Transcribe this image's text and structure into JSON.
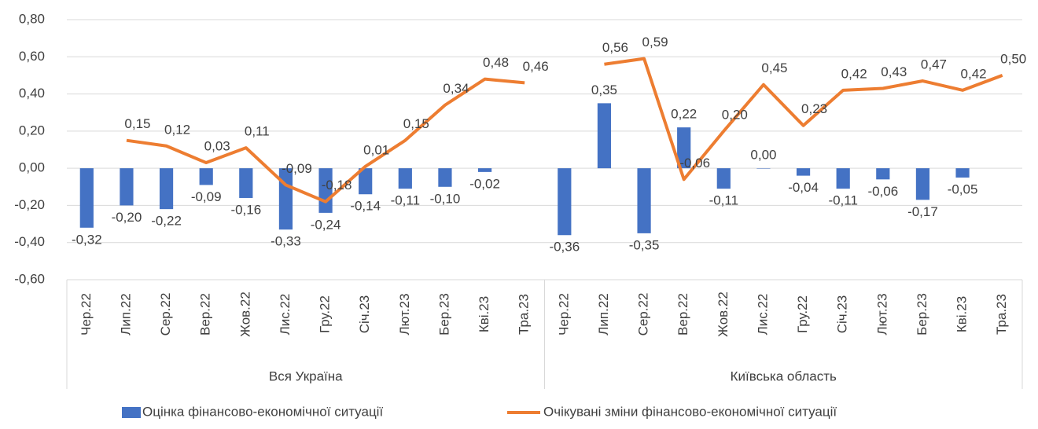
{
  "chart_data": {
    "type": "bar_line",
    "groups": [
      {
        "name": "Вся Україна",
        "categories": [
          "Чер.22",
          "Лип.22",
          "Сер.22",
          "Вер.22",
          "Жов.22",
          "Лис.22",
          "Гру.22",
          "Січ.23",
          "Лют.23",
          "Бер.23",
          "Кві.23",
          "Тра.23"
        ]
      },
      {
        "name": "Київська область",
        "categories": [
          "Чер.22",
          "Лип.22",
          "Сер.22",
          "Вер.22",
          "Жов.22",
          "Лис.22",
          "Гру.22",
          "Січ.23",
          "Лют.23",
          "Бер.23",
          "Кві.23",
          "Тра.23"
        ]
      }
    ],
    "series": [
      {
        "name": "Оцінка фінансово-економічної ситуації",
        "kind": "bar",
        "color": "#4472c4",
        "values": [
          -0.32,
          -0.2,
          -0.22,
          -0.09,
          -0.16,
          -0.33,
          -0.24,
          -0.14,
          -0.11,
          -0.1,
          -0.02,
          null,
          -0.36,
          0.35,
          -0.35,
          0.22,
          -0.11,
          0.0,
          -0.04,
          -0.11,
          -0.06,
          -0.17,
          -0.05,
          null
        ],
        "value_labels": [
          "-0,32",
          "-0,20",
          "-0,22",
          "-0,09",
          "-0,16",
          "-0,33",
          "-0,24",
          "-0,14",
          "-0,11",
          "-0,10",
          "-0,02",
          null,
          "-0,36",
          "0,35",
          "-0,35",
          "0,22",
          "-0,11",
          "0,00",
          "-0,04",
          "-0,11",
          "-0,06",
          "-0,17",
          "-0,05",
          null
        ]
      },
      {
        "name": "Очікувані зміни фінансово-економічної ситуації",
        "kind": "line",
        "color": "#ed7d31",
        "values": [
          null,
          0.15,
          0.12,
          0.03,
          0.11,
          -0.09,
          -0.18,
          0.01,
          0.15,
          0.34,
          0.48,
          0.46,
          null,
          0.56,
          0.59,
          -0.06,
          0.2,
          0.45,
          0.23,
          0.42,
          0.43,
          0.47,
          0.42,
          0.5
        ],
        "value_labels": [
          null,
          "0,15",
          "0,12",
          "0,03",
          "0,11",
          "-0,09",
          "-0,18",
          "0,01",
          "0,15",
          "0,34",
          "0,48",
          "0,46",
          null,
          "0,56",
          "0,59",
          "-0,06",
          "0,20",
          "0,45",
          "0,23",
          "0,42",
          "0,43",
          "0,47",
          "0,42",
          "0,50"
        ]
      }
    ],
    "ylim": [
      -0.6,
      0.8
    ],
    "yticks": [
      {
        "value": -0.6,
        "label": "-0,60"
      },
      {
        "value": -0.4,
        "label": "-0,40"
      },
      {
        "value": -0.2,
        "label": "-0,20"
      },
      {
        "value": 0,
        "label": "0,00"
      },
      {
        "value": 0.2,
        "label": "0,20"
      },
      {
        "value": 0.4,
        "label": "0,40"
      },
      {
        "value": 0.6,
        "label": "0,60"
      },
      {
        "value": 0.8,
        "label": "0,80"
      }
    ],
    "grid": true,
    "legend": "bottom"
  }
}
